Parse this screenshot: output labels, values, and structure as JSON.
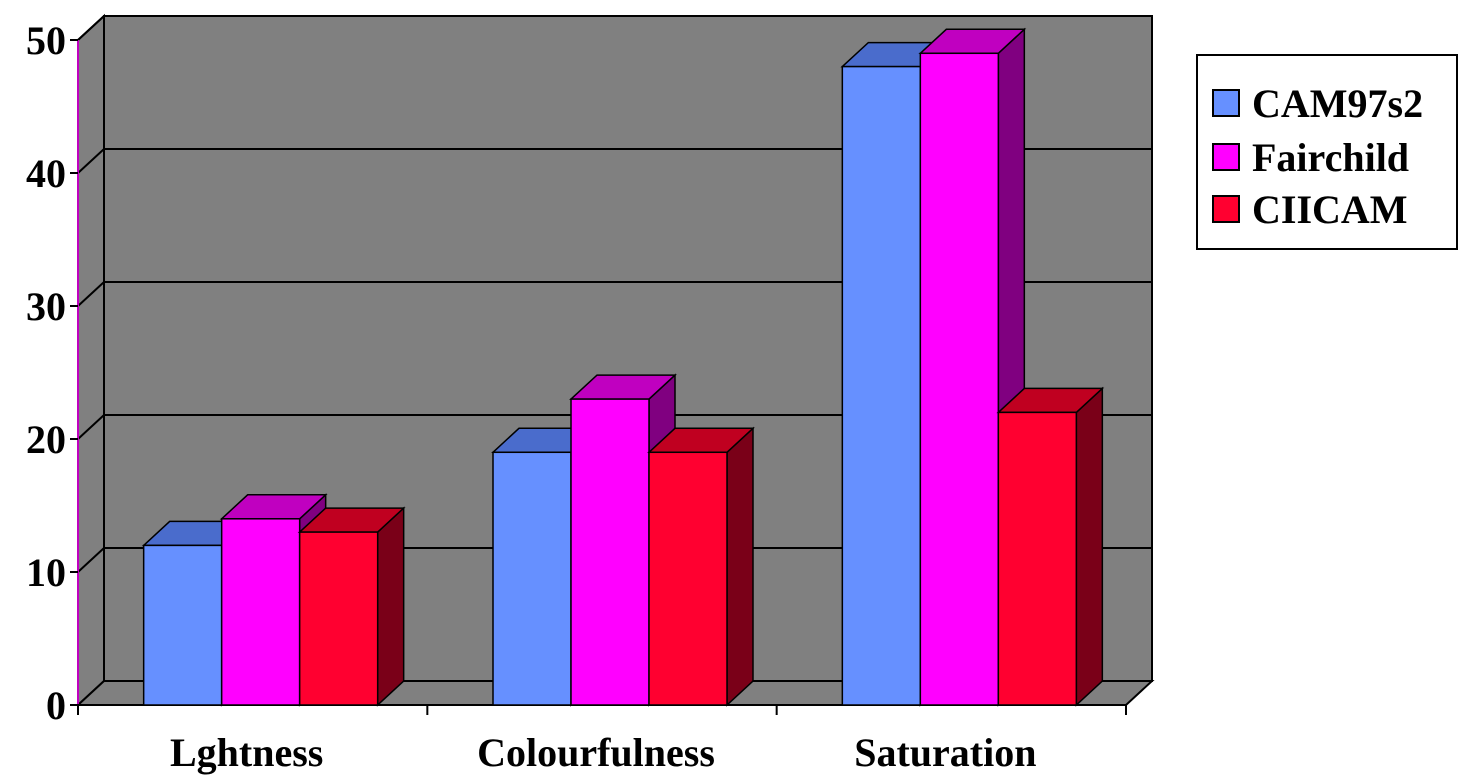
{
  "chart_data": {
    "type": "bar",
    "title": "",
    "xlabel": "",
    "ylabel": "",
    "ylim": [
      0,
      50
    ],
    "yticks": [
      0,
      10,
      20,
      30,
      40,
      50
    ],
    "categories": [
      "Lghtness",
      "Colourfulness",
      "Saturation"
    ],
    "series": [
      {
        "name": "CAM97s2",
        "values": [
          12,
          19,
          48
        ],
        "color": "#6690ff",
        "top_color": "#4a6ccc",
        "side_color": "#3a56a8"
      },
      {
        "name": "Fairchild",
        "values": [
          14,
          23,
          49
        ],
        "color": "#ff00ff",
        "top_color": "#c000c0",
        "side_color": "#800080"
      },
      {
        "name": "CIICAM",
        "values": [
          13,
          19,
          22
        ],
        "color": "#ff0030",
        "top_color": "#c00020",
        "side_color": "#7a0018"
      }
    ],
    "grid": true,
    "legend_position": "right",
    "style": "3d-clustered-bar",
    "wall_color": "#808080",
    "axis_line_color": "#c000c0"
  }
}
